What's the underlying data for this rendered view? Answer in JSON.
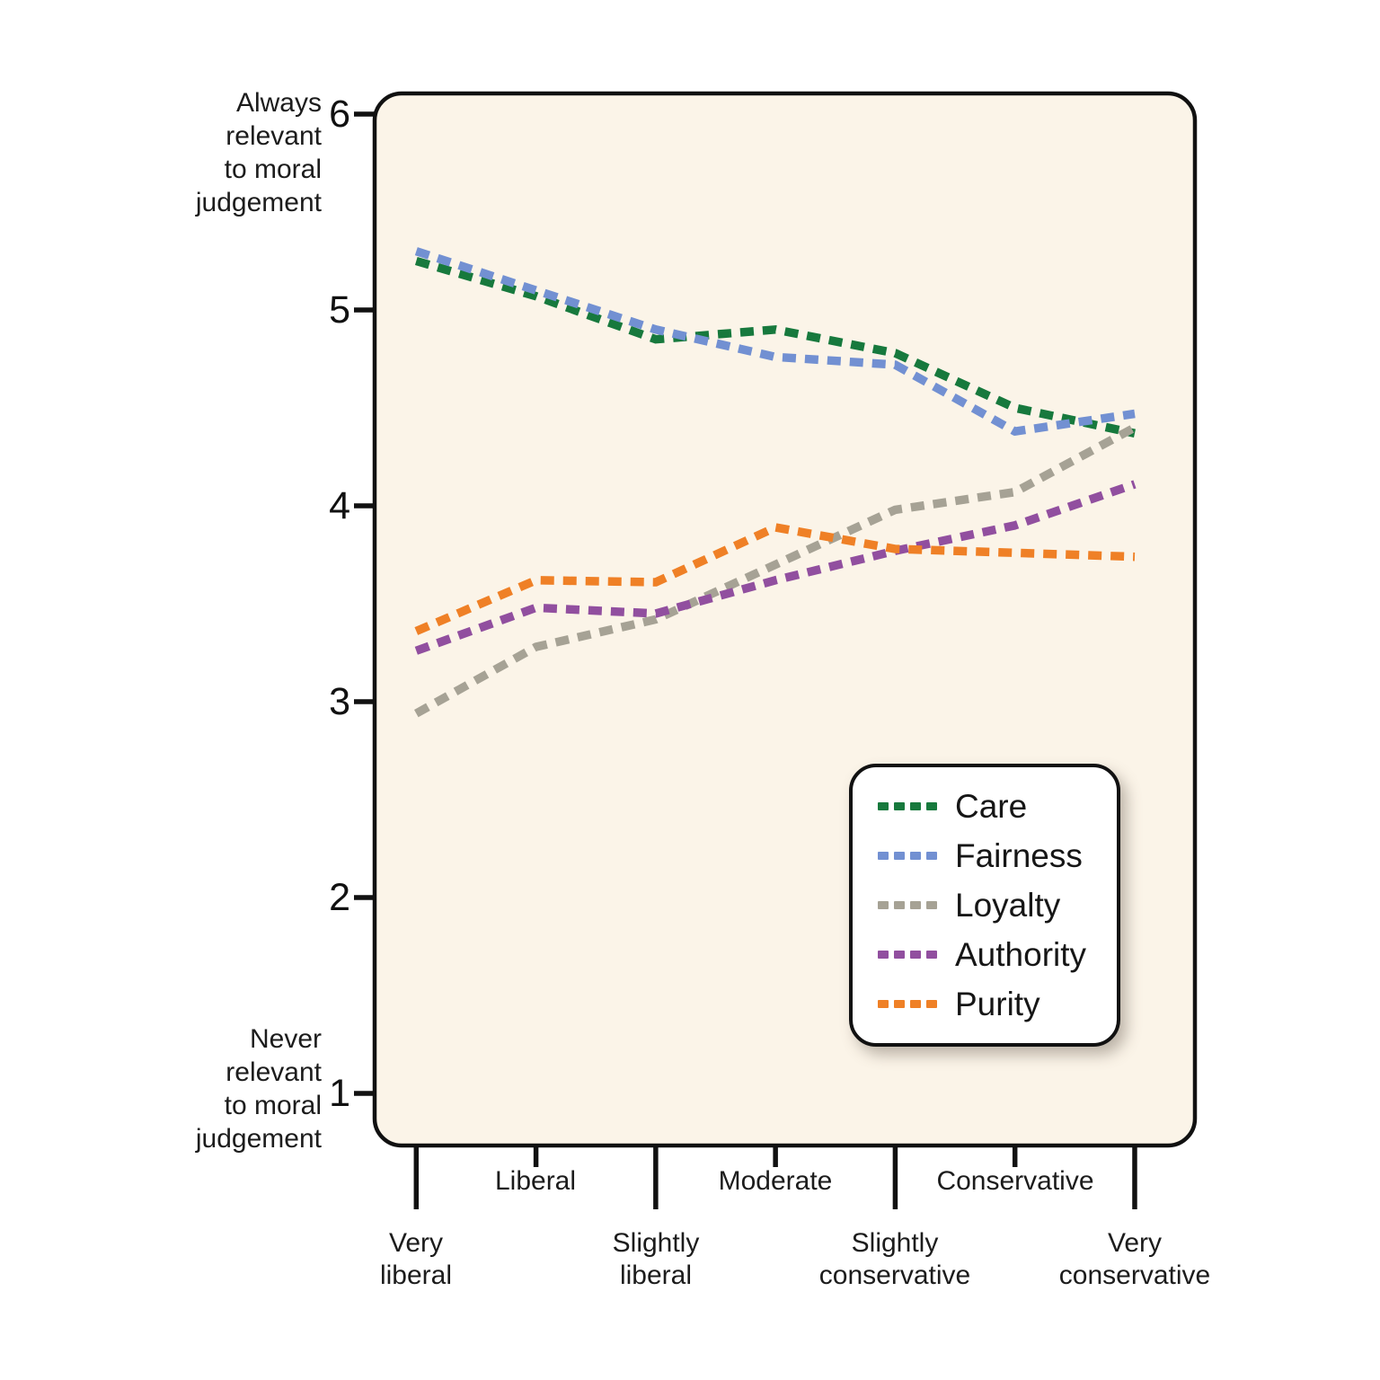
{
  "chart_data": {
    "type": "line",
    "line_style": "dashed",
    "grid": false,
    "plot_bg_color": "#fbf4e8",
    "axis_color": "#111111",
    "y": {
      "min": 1,
      "max": 6,
      "ticks": [
        6,
        5,
        4,
        3,
        2,
        1
      ],
      "tick_labels": [
        "6",
        "5",
        "4",
        "3",
        "2",
        "1"
      ],
      "top_label": "Always\nrelevant\nto moral\njudgement",
      "bottom_label": "Never\nrelevant\nto moral\njudgement"
    },
    "x": {
      "points": [
        "Very liberal",
        "Liberal",
        "Slightly liberal",
        "Moderate",
        "Slightly conservative",
        "Conservative",
        "Very conservative"
      ],
      "major_tick_indices": [
        0,
        2,
        4,
        6
      ],
      "minor_tick_indices": [
        1,
        3,
        5
      ],
      "minor_labels": [
        "Liberal",
        "Moderate",
        "Conservative"
      ],
      "major_labels": [
        "Very\nliberal",
        "Slightly\nliberal",
        "Slightly\nconservative",
        "Very\nconservative"
      ]
    },
    "series": [
      {
        "name": "Care",
        "color": "#17793d",
        "values": [
          5.25,
          5.07,
          4.85,
          4.9,
          4.78,
          4.5,
          4.37
        ]
      },
      {
        "name": "Fairness",
        "color": "#7290d2",
        "values": [
          5.3,
          5.1,
          4.9,
          4.76,
          4.72,
          4.38,
          4.47
        ]
      },
      {
        "name": "Loyalty",
        "color": "#a6a295",
        "values": [
          2.94,
          3.28,
          3.42,
          3.7,
          3.98,
          4.07,
          4.4
        ]
      },
      {
        "name": "Authority",
        "color": "#914f9f",
        "values": [
          3.26,
          3.48,
          3.45,
          3.62,
          3.77,
          3.9,
          4.11
        ]
      },
      {
        "name": "Purity",
        "color": "#ef8026",
        "values": [
          3.36,
          3.62,
          3.61,
          3.89,
          3.78,
          3.76,
          3.74
        ]
      }
    ],
    "legend": {
      "position": "inside-bottom-right",
      "entries": [
        "Care",
        "Fairness",
        "Loyalty",
        "Authority",
        "Purity"
      ]
    }
  }
}
